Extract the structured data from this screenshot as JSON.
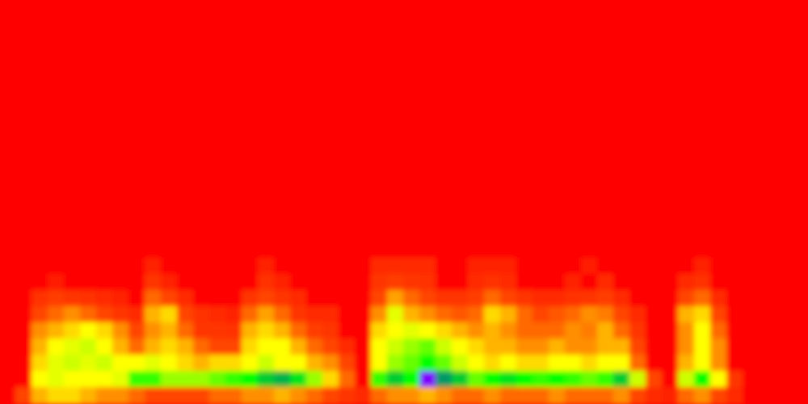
{
  "chart_data": {
    "type": "heatmap",
    "tick_labels": false,
    "zlim": [
      0,
      5
    ],
    "cells": [
      [
        0,
        0,
        0,
        0,
        0,
        0,
        0,
        0,
        0,
        0,
        0,
        0,
        0,
        0,
        0,
        0,
        0,
        0,
        0,
        0,
        0,
        0,
        0,
        0,
        0,
        0,
        0,
        0,
        0,
        0,
        0,
        0,
        0,
        0,
        0,
        0,
        0,
        0,
        0,
        0,
        0,
        0,
        0,
        0,
        0,
        0,
        0,
        0,
        0,
        0
      ],
      [
        0,
        0,
        0,
        0,
        0,
        0,
        0,
        0,
        0,
        0,
        0,
        0,
        0,
        0,
        0,
        0,
        0,
        0,
        0,
        0,
        0,
        0,
        0,
        0,
        0,
        0,
        0,
        0,
        0,
        0,
        0,
        0,
        0,
        0,
        0,
        0,
        0,
        0,
        0,
        0,
        0,
        0,
        0,
        0,
        0,
        0,
        0,
        0,
        0,
        0
      ],
      [
        0,
        0,
        0,
        0,
        0,
        0,
        0,
        0,
        0,
        0,
        0,
        0,
        0,
        0,
        0,
        0,
        0,
        0,
        0,
        0,
        0,
        0,
        0,
        0,
        0,
        0,
        0,
        0,
        0,
        0,
        0,
        0,
        0,
        0,
        0,
        0,
        0,
        0,
        0,
        0,
        0,
        0,
        0,
        0,
        0,
        0,
        0,
        0,
        0,
        0
      ],
      [
        0,
        0,
        0,
        0,
        0,
        0,
        0,
        0,
        0,
        0,
        0,
        0,
        0,
        0,
        0,
        0,
        0,
        0,
        0,
        0,
        0,
        0,
        0,
        0,
        0,
        0,
        0,
        0,
        0,
        0,
        0,
        0,
        0,
        0,
        0,
        0,
        0,
        0,
        0,
        0,
        0,
        0,
        0,
        0,
        0,
        0,
        0,
        0,
        0,
        0
      ],
      [
        0,
        0,
        0,
        0,
        0,
        0,
        0,
        0,
        0,
        0,
        0,
        0,
        0,
        0,
        0,
        0,
        0,
        0,
        0,
        0,
        0,
        0,
        0,
        0,
        0,
        0,
        0,
        0,
        0,
        0,
        0,
        0,
        0,
        0,
        0,
        0,
        0,
        0,
        0,
        0,
        0,
        0,
        0,
        0,
        0,
        0,
        0,
        0,
        0,
        0
      ],
      [
        0,
        0,
        0,
        0,
        0,
        0,
        0,
        0,
        0,
        0,
        0,
        0,
        0,
        0,
        0,
        0,
        0,
        0,
        0,
        0,
        0,
        0,
        0,
        0,
        0,
        0,
        0,
        0,
        0,
        0,
        0,
        0,
        0,
        0,
        0,
        0,
        0,
        0,
        0,
        0,
        0,
        0,
        0,
        0,
        0,
        0,
        0,
        0,
        0,
        0
      ],
      [
        0,
        0,
        0,
        0,
        0,
        0,
        0,
        0,
        0,
        0,
        0,
        0,
        0,
        0,
        0,
        0,
        0,
        0,
        0,
        0,
        0,
        0,
        0,
        0,
        0,
        0,
        0,
        0,
        0,
        0,
        0,
        0,
        0,
        0,
        0,
        0,
        0,
        0,
        0,
        0,
        0,
        0,
        0,
        0,
        0,
        0,
        0,
        0,
        0,
        0
      ],
      [
        0,
        0,
        0,
        0,
        0,
        0,
        0,
        0,
        0,
        0,
        0,
        0,
        0,
        0,
        0,
        0,
        0,
        0,
        0,
        0,
        0,
        0,
        0,
        0,
        0,
        0,
        0,
        0,
        0,
        0,
        0,
        0,
        0,
        0,
        0,
        0,
        0,
        0,
        0,
        0,
        0,
        0,
        0,
        0,
        0,
        0,
        0,
        0,
        0,
        0
      ],
      [
        0,
        0,
        0,
        0,
        0,
        0,
        0,
        0,
        0,
        0,
        0,
        0,
        0,
        0,
        0,
        0,
        0,
        0,
        0,
        0,
        0,
        0,
        0,
        0,
        0,
        0,
        0,
        0,
        0,
        0,
        0,
        0,
        0,
        0,
        0,
        0,
        0,
        0,
        0,
        0,
        0,
        0,
        0,
        0,
        0,
        0,
        0,
        0,
        0,
        0
      ],
      [
        0,
        0,
        0,
        0,
        0,
        0,
        0,
        0,
        0,
        0,
        0,
        0,
        0,
        0,
        0,
        0,
        0,
        0,
        0,
        0,
        0,
        0,
        0,
        0,
        0,
        0,
        0,
        0,
        0,
        0,
        0,
        0,
        0,
        0,
        0,
        0,
        0,
        0,
        0,
        0,
        0,
        0,
        0,
        0,
        0,
        0,
        0,
        0,
        0,
        0
      ],
      [
        0,
        0,
        0,
        0,
        0,
        0,
        0,
        0,
        0,
        0,
        0,
        0,
        0,
        0,
        0,
        0,
        0,
        0,
        0,
        0,
        0,
        0,
        0,
        0,
        0,
        0,
        0,
        0,
        0,
        0,
        0,
        0,
        0,
        0,
        0,
        0,
        0,
        0,
        0,
        0,
        0,
        0,
        0,
        0,
        0,
        0,
        0,
        0,
        0,
        0
      ],
      [
        0,
        0,
        0,
        0,
        0,
        0,
        0,
        0,
        0,
        0,
        0,
        0,
        0,
        0,
        0,
        0,
        0,
        0,
        0,
        0,
        0,
        0,
        0,
        0,
        0,
        0,
        0,
        0,
        0,
        0,
        0,
        0,
        0,
        0,
        0,
        0,
        0,
        0,
        0,
        0,
        0,
        0,
        0,
        0,
        0,
        0,
        0,
        0,
        0,
        0
      ],
      [
        0,
        0,
        0,
        0,
        0,
        0,
        0,
        0,
        0,
        0,
        0,
        0,
        0,
        0,
        0,
        0,
        0,
        0,
        0,
        0,
        0,
        0,
        0,
        0,
        0,
        0,
        0,
        0,
        0,
        0,
        0,
        0,
        0,
        0,
        0,
        0,
        0,
        0,
        0,
        0,
        0,
        0,
        0,
        0,
        0,
        0,
        0,
        0,
        0,
        0
      ],
      [
        0,
        0,
        0,
        0,
        0,
        0,
        0,
        0,
        0,
        0,
        0,
        0,
        0,
        0,
        0,
        0,
        0,
        0,
        0,
        0,
        0,
        0,
        0,
        0,
        0,
        0,
        0,
        0,
        0,
        0,
        0,
        0,
        0,
        0,
        0,
        0,
        0,
        0,
        0,
        0,
        0,
        0,
        0,
        0,
        0,
        0,
        0,
        0,
        0,
        0
      ],
      [
        0,
        0,
        0,
        0,
        0,
        0,
        0,
        0,
        0,
        0,
        0,
        0,
        0,
        0,
        0,
        0,
        0,
        0,
        0,
        0,
        0,
        0,
        0,
        0,
        0,
        0,
        0,
        0,
        0,
        0,
        0,
        0,
        0,
        0,
        0,
        0,
        0,
        0,
        0,
        0,
        0,
        0,
        0,
        0,
        0,
        0,
        0,
        0,
        0,
        0
      ],
      [
        0,
        0,
        0,
        0,
        0,
        0,
        0,
        0,
        0,
        0,
        0,
        0,
        0,
        0,
        0,
        0,
        0,
        0,
        0,
        0,
        0,
        0,
        0,
        0,
        0,
        0,
        0,
        0,
        0,
        0,
        0,
        0,
        0,
        0,
        0,
        0,
        0,
        0,
        0,
        0,
        0,
        0,
        0,
        0,
        0,
        0,
        0,
        0,
        0,
        0
      ],
      [
        0,
        0,
        0,
        0,
        0,
        0,
        0,
        0,
        0,
        0.5,
        0,
        0,
        0,
        0,
        0,
        0,
        0.5,
        0,
        0,
        0,
        0,
        0,
        0,
        0.6,
        0.6,
        0.6,
        0.6,
        0,
        0,
        0.5,
        0.5,
        0.5,
        0,
        0,
        0,
        0,
        0.4,
        0,
        0,
        0,
        0,
        0,
        0,
        0.5,
        0,
        0,
        0,
        0,
        0,
        0
      ],
      [
        0,
        0,
        0,
        0.4,
        0,
        0,
        0,
        0,
        0,
        0.8,
        0.5,
        0,
        0,
        0,
        0,
        0,
        0.7,
        0.5,
        0,
        0,
        0,
        0,
        0,
        0.8,
        0.9,
        0.8,
        0.7,
        0,
        0,
        0.6,
        0.7,
        0.6,
        0,
        0,
        0,
        0.5,
        0,
        0.6,
        0,
        0,
        0,
        0,
        0.6,
        0.7,
        0,
        0,
        0,
        0,
        0,
        0
      ],
      [
        0,
        0,
        0.7,
        0.9,
        0.8,
        0.7,
        0.6,
        0.5,
        0,
        1.2,
        1.0,
        0.6,
        0,
        0,
        0,
        0.8,
        1.0,
        0.8,
        0.6,
        0,
        0,
        0,
        0,
        1.0,
        1.5,
        1.2,
        1.0,
        0.8,
        0.8,
        0.9,
        1.2,
        1.0,
        0.8,
        0.6,
        0.6,
        0.7,
        0.8,
        0.9,
        0.6,
        0,
        0,
        0,
        1.0,
        1.2,
        0.6,
        0,
        0,
        0,
        0,
        0
      ],
      [
        0,
        0,
        1.0,
        1.2,
        1.4,
        1.2,
        1.0,
        0.8,
        0.6,
        1.6,
        1.8,
        1.0,
        0.7,
        0.6,
        0.5,
        1.2,
        1.5,
        1.2,
        0.8,
        0.6,
        0.6,
        0,
        0,
        1.4,
        2.1,
        1.6,
        1.4,
        1.2,
        1.1,
        1.2,
        1.8,
        1.6,
        1.2,
        1.0,
        1.1,
        1.2,
        1.4,
        1.3,
        1.0,
        0.6,
        0,
        0,
        1.6,
        1.8,
        1.0,
        0,
        0,
        0,
        0,
        0
      ],
      [
        0,
        0,
        1.4,
        1.6,
        1.8,
        2.0,
        1.8,
        1.4,
        1.0,
        1.4,
        1.6,
        1.2,
        0.8,
        0.8,
        0.7,
        1.6,
        1.8,
        1.6,
        1.2,
        0.9,
        0.8,
        0,
        0,
        1.8,
        2.0,
        2.1,
        2.0,
        1.8,
        1.6,
        1.4,
        1.6,
        1.4,
        1.2,
        1.2,
        1.2,
        1.4,
        1.3,
        1.6,
        1.2,
        0.8,
        0,
        0,
        1.4,
        2.0,
        1.2,
        0,
        0,
        0,
        0,
        0
      ],
      [
        0,
        0,
        1.6,
        2.0,
        2.1,
        2.2,
        2.0,
        1.6,
        1.2,
        1.6,
        1.8,
        1.6,
        1.2,
        1.0,
        1.0,
        1.8,
        2.0,
        2.0,
        1.6,
        1.2,
        1.0,
        0.6,
        0,
        2.0,
        2.2,
        2.4,
        2.6,
        2.2,
        2.0,
        1.8,
        1.6,
        1.6,
        1.4,
        1.4,
        1.6,
        1.4,
        1.4,
        1.6,
        1.6,
        1.0,
        0,
        0,
        1.4,
        2.0,
        1.4,
        0,
        0,
        0,
        0,
        0
      ],
      [
        0,
        0,
        1.8,
        2.1,
        2.2,
        2.1,
        2.2,
        2.0,
        2.0,
        2.1,
        2.0,
        1.8,
        1.6,
        1.8,
        1.8,
        2.0,
        2.2,
        2.0,
        2.0,
        1.6,
        1.4,
        1.0,
        0,
        2.0,
        2.4,
        2.6,
        3.0,
        2.6,
        2.2,
        2.0,
        1.8,
        2.0,
        1.8,
        1.8,
        2.0,
        2.0,
        1.8,
        2.0,
        2.0,
        1.2,
        0,
        0,
        1.6,
        2.0,
        1.4,
        0,
        0,
        0,
        0,
        0
      ],
      [
        0,
        0,
        2.0,
        2.1,
        2.0,
        2.0,
        2.0,
        2.1,
        2.8,
        2.8,
        2.4,
        2.4,
        2.4,
        2.6,
        2.8,
        3.0,
        3.2,
        3.3,
        3.1,
        2.4,
        1.8,
        1.2,
        0,
        2.8,
        3.2,
        3.0,
        4.5,
        3.4,
        3.2,
        2.6,
        3.0,
        3.1,
        3.0,
        2.8,
        3.0,
        2.8,
        2.6,
        2.8,
        3.2,
        2.2,
        1.0,
        0,
        2.2,
        3.0,
        2.0,
        0.8,
        0,
        0,
        0,
        0
      ],
      [
        0,
        1.0,
        1.6,
        1.8,
        1.8,
        1.6,
        1.4,
        1.4,
        1.2,
        1.0,
        1.0,
        1.0,
        1.0,
        1.2,
        1.2,
        1.4,
        1.4,
        1.6,
        1.4,
        1.2,
        1.0,
        0.8,
        0.6,
        1.2,
        1.4,
        1.4,
        1.6,
        1.4,
        1.2,
        1.2,
        1.4,
        1.2,
        1.2,
        1.2,
        1.4,
        1.2,
        1.2,
        1.2,
        1.4,
        1.0,
        0.6,
        0.5,
        1.2,
        1.4,
        1.0,
        0.6,
        0,
        0,
        0,
        0
      ]
    ]
  }
}
